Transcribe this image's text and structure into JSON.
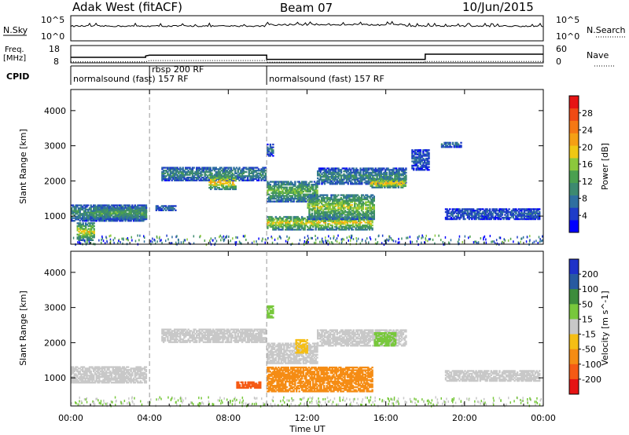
{
  "header": {
    "station": "Adak West (fitACF)",
    "beam": "Beam 07",
    "date": "10/Jun/2015"
  },
  "noise_panel": {
    "left_label": "N.Sky",
    "right_label": "N.Search",
    "left_ticks": [
      "10^5",
      "10^0"
    ],
    "right_ticks": [
      "10^5",
      "10^0"
    ]
  },
  "freq_panel": {
    "left_label_line1": "Freq.",
    "left_label_line2": "[MHz]",
    "right_label": "Nave",
    "left_ticks": [
      "18",
      "8"
    ],
    "right_ticks": [
      "60",
      "0"
    ]
  },
  "cpid_panel": {
    "label": "CPID",
    "segments": [
      {
        "start_hour": 0,
        "end_hour": 4.0,
        "label": "normalsound (fast) 157 RF"
      },
      {
        "start_hour": 4.0,
        "end_hour": 9.95,
        "label": "rbsp 200 RF"
      },
      {
        "start_hour": 9.95,
        "end_hour": 24,
        "label": "normalsound (fast) 157 RF"
      }
    ]
  },
  "chart_data": [
    {
      "type": "heatmap",
      "name": "power",
      "ylabel": "Slant Range [km]",
      "ylim": [
        200,
        4600
      ],
      "yticks": [
        1000,
        2000,
        3000,
        4000
      ],
      "xlim": [
        0,
        24
      ],
      "colorbar": {
        "label": "Power [dB]",
        "range": [
          0,
          32
        ],
        "ticks": [
          4,
          8,
          12,
          16,
          20,
          24,
          28
        ],
        "colors": [
          "#0000ff",
          "#1e3cc8",
          "#2f6fa0",
          "#3d8a70",
          "#4aa050",
          "#8cc83c",
          "#f0c814",
          "#f5a014",
          "#f57814",
          "#f04a14",
          "#e61414"
        ]
      },
      "echo_regions": [
        {
          "t0": 0.0,
          "t1": 3.8,
          "r0": 850,
          "r1": 1300,
          "power": 9
        },
        {
          "t0": 0.3,
          "t1": 1.2,
          "r0": 300,
          "r1": 800,
          "power": 16
        },
        {
          "t0": 1.2,
          "t1": 3.8,
          "r0": 900,
          "r1": 1250,
          "power": 11
        },
        {
          "t0": 4.3,
          "t1": 5.3,
          "r0": 1150,
          "r1": 1300,
          "power": 6
        },
        {
          "t0": 4.6,
          "t1": 9.9,
          "r0": 2000,
          "r1": 2400,
          "power": 8
        },
        {
          "t0": 7.0,
          "t1": 8.4,
          "r0": 1750,
          "r1": 2150,
          "power": 18
        },
        {
          "t0": 9.95,
          "t1": 10.3,
          "r0": 2700,
          "r1": 3050,
          "power": 6
        },
        {
          "t0": 9.95,
          "t1": 12.5,
          "r0": 1400,
          "r1": 2000,
          "power": 12
        },
        {
          "t0": 9.95,
          "t1": 15.3,
          "r0": 600,
          "r1": 1000,
          "power": 16
        },
        {
          "t0": 12.0,
          "t1": 15.4,
          "r0": 900,
          "r1": 1600,
          "power": 14
        },
        {
          "t0": 12.5,
          "t1": 17.0,
          "r0": 1900,
          "r1": 2350,
          "power": 8
        },
        {
          "t0": 15.2,
          "t1": 17.0,
          "r0": 1800,
          "r1": 2050,
          "power": 18
        },
        {
          "t0": 17.3,
          "t1": 18.2,
          "r0": 2300,
          "r1": 2900,
          "power": 5
        },
        {
          "t0": 18.8,
          "t1": 19.8,
          "r0": 2950,
          "r1": 3100,
          "power": 6
        },
        {
          "t0": 19.0,
          "t1": 23.8,
          "r0": 900,
          "r1": 1200,
          "power": 5
        }
      ]
    },
    {
      "type": "heatmap",
      "name": "velocity",
      "xlabel": "Time UT",
      "ylabel": "Slant Range [km]",
      "ylim": [
        200,
        4600
      ],
      "yticks": [
        1000,
        2000,
        3000,
        4000
      ],
      "xlim": [
        0,
        24
      ],
      "xticks": [
        "00:00",
        "04:00",
        "08:00",
        "12:00",
        "16:00",
        "20:00",
        "00:00"
      ],
      "colorbar": {
        "label": "Velocity [m s^-1]",
        "ticks": [
          "200",
          "100",
          "50",
          "15",
          "-15",
          "-50",
          "-100",
          "-200"
        ],
        "colors": [
          "#1e32c8",
          "#285aa0",
          "#3c8c3c",
          "#78c83c",
          "#c8c8c8",
          "#f5be14",
          "#f58c14",
          "#f55a14",
          "#e61414"
        ]
      },
      "echo_regions": [
        {
          "t0": 0.0,
          "t1": 3.8,
          "r0": 850,
          "r1": 1300,
          "velocity": 0
        },
        {
          "t0": 4.6,
          "t1": 9.9,
          "r0": 2000,
          "r1": 2400,
          "velocity": 0
        },
        {
          "t0": 9.95,
          "t1": 12.5,
          "r0": 1400,
          "r1": 2000,
          "velocity": 0
        },
        {
          "t0": 11.4,
          "t1": 12.0,
          "r0": 1700,
          "r1": 2100,
          "velocity": -40
        },
        {
          "t0": 9.95,
          "t1": 15.3,
          "r0": 600,
          "r1": 1300,
          "velocity": -60
        },
        {
          "t0": 12.5,
          "t1": 17.0,
          "r0": 1900,
          "r1": 2350,
          "velocity": 0
        },
        {
          "t0": 15.4,
          "t1": 16.5,
          "r0": 1900,
          "r1": 2300,
          "velocity": 30
        },
        {
          "t0": 9.95,
          "t1": 10.3,
          "r0": 2700,
          "r1": 3050,
          "velocity": 30
        },
        {
          "t0": 19.0,
          "t1": 23.8,
          "r0": 900,
          "r1": 1200,
          "velocity": 0
        },
        {
          "t0": 8.4,
          "t1": 9.6,
          "r0": 700,
          "r1": 900,
          "velocity": -150
        }
      ]
    }
  ]
}
